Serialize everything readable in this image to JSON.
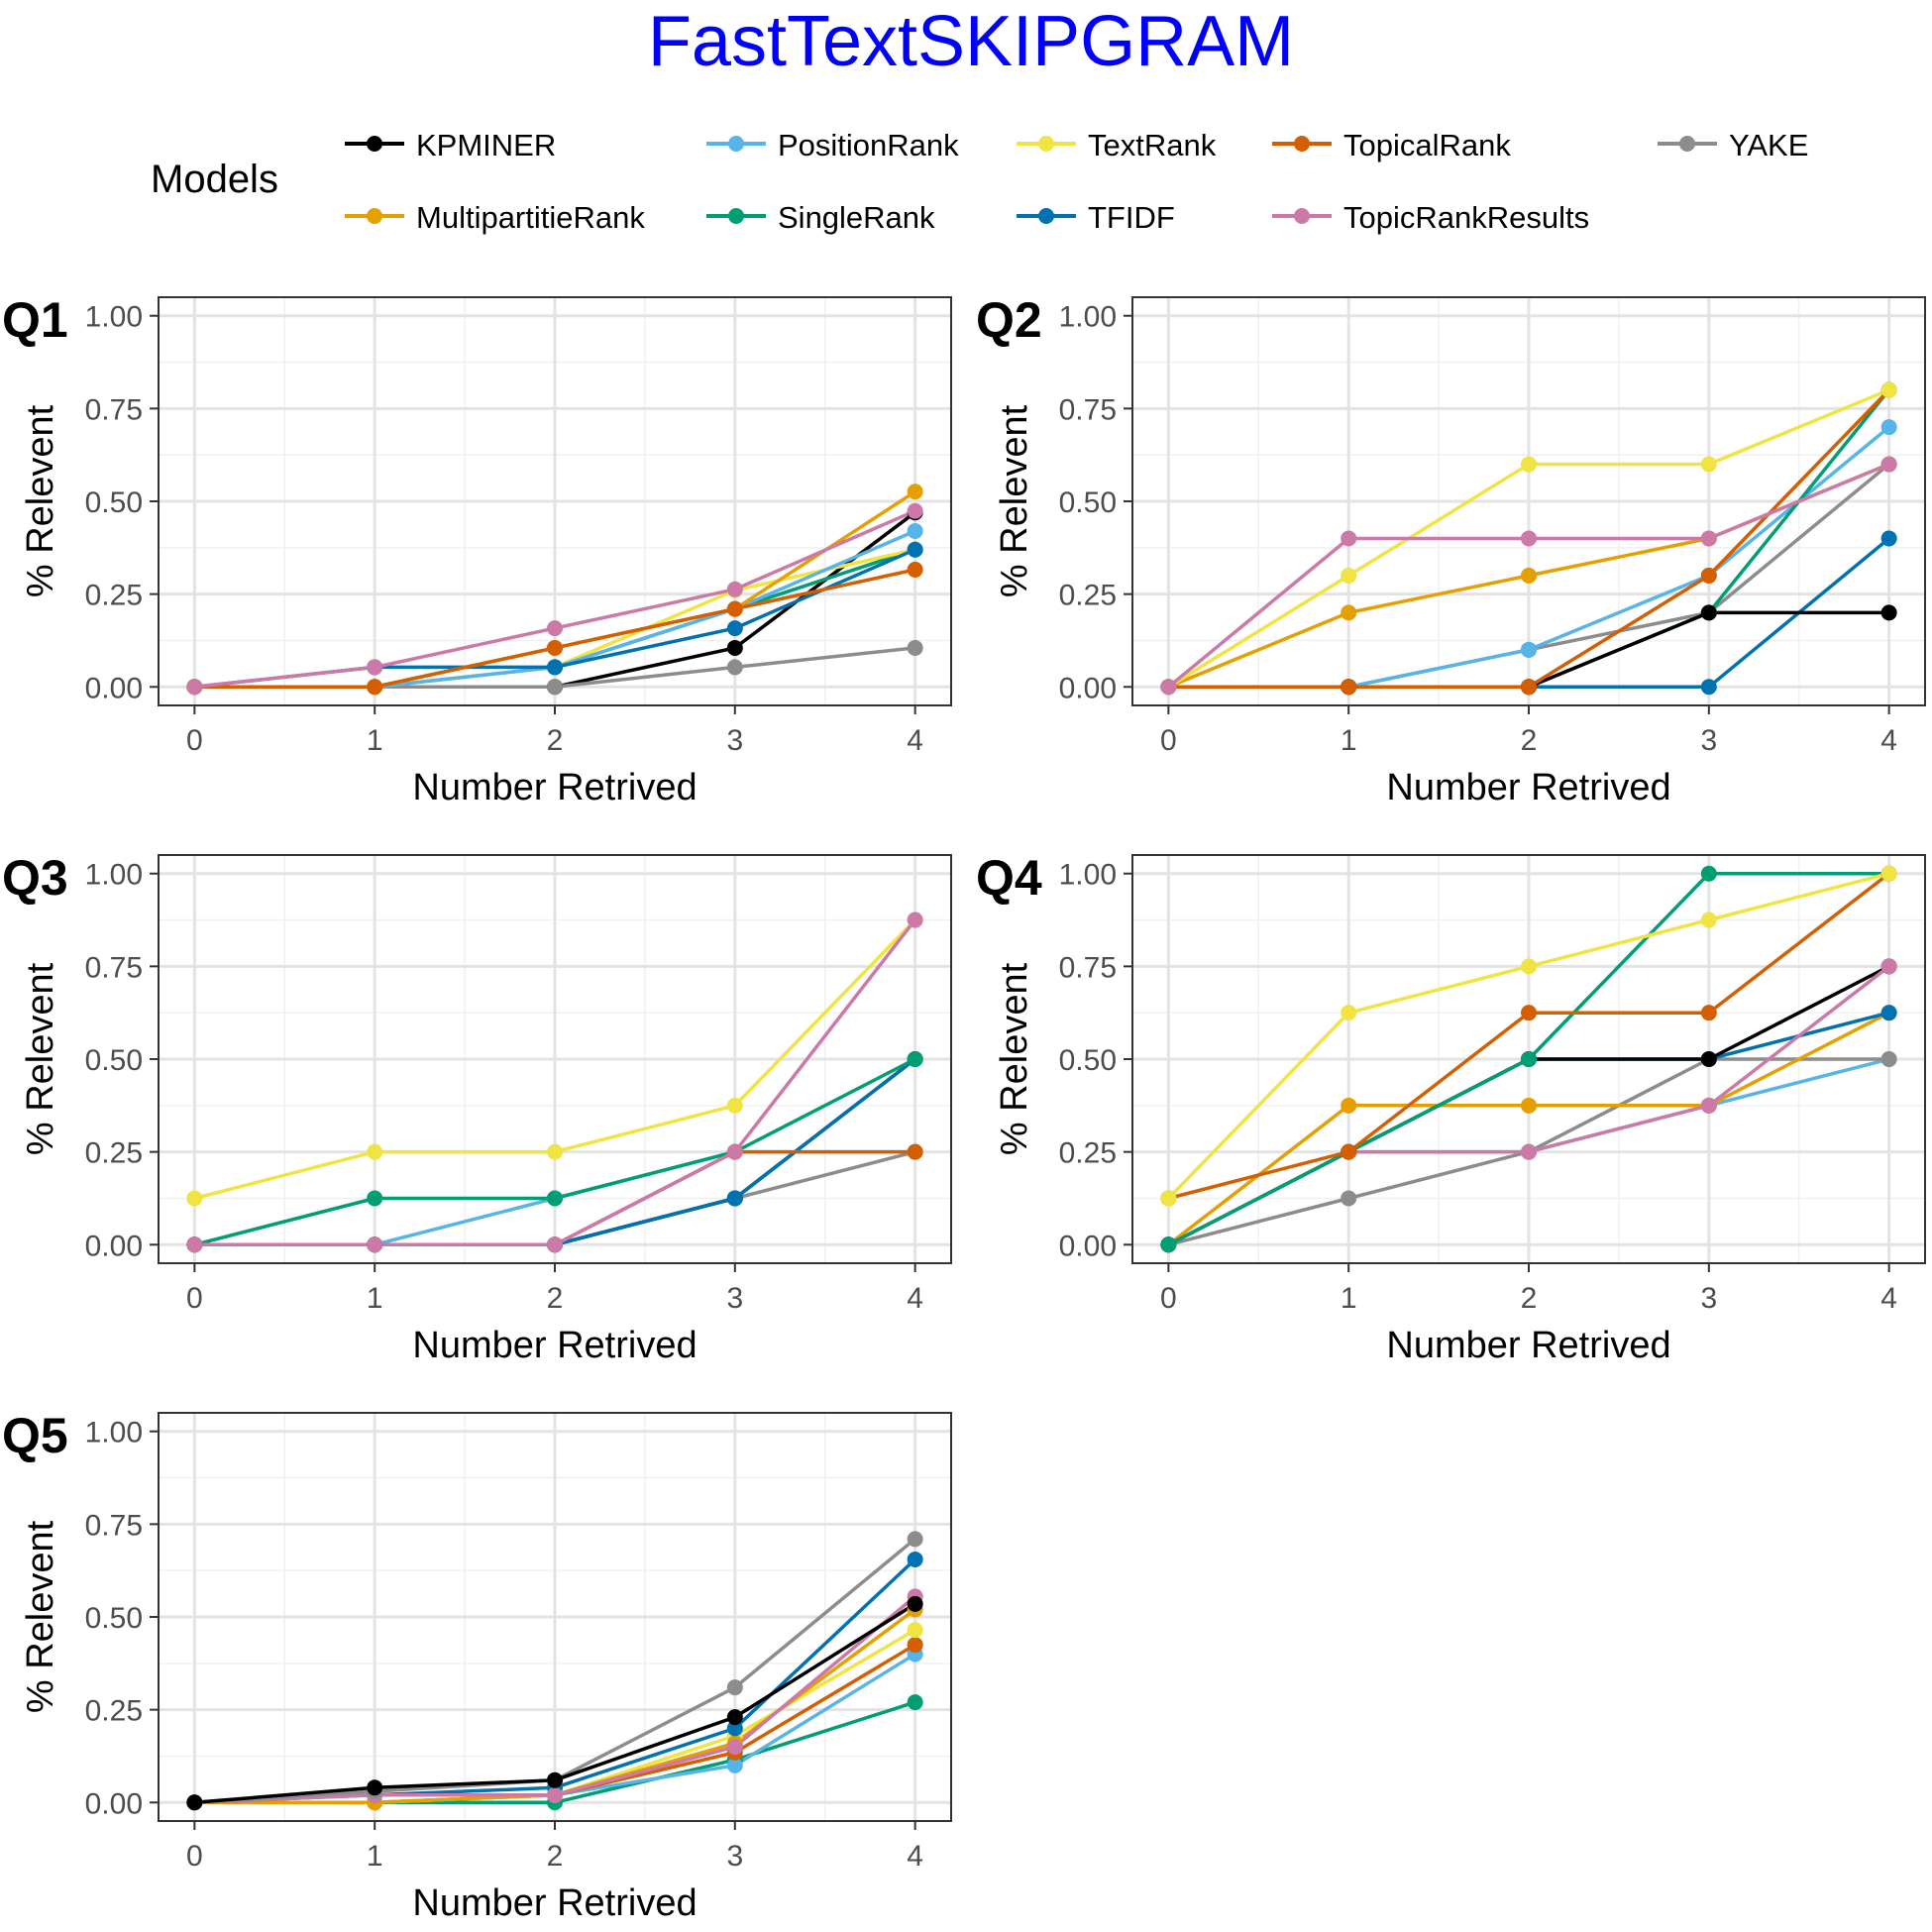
{
  "title": "FastTextSKIPGRAM",
  "title_color": "#0000ff",
  "legend": {
    "title": "Models",
    "items": [
      {
        "name": "KPMINER",
        "color": "#000000"
      },
      {
        "name": "PositionRank",
        "color": "#56b4e9"
      },
      {
        "name": "TextRank",
        "color": "#f0e442"
      },
      {
        "name": "TopicalRank",
        "color": "#d55e00"
      },
      {
        "name": "YAKE",
        "color": "#8c8c8c"
      },
      {
        "name": "MultipartitieRank",
        "color": "#e69f00"
      },
      {
        "name": "SingleRank",
        "color": "#009e73"
      },
      {
        "name": "TFIDF",
        "color": "#0072b2"
      },
      {
        "name": "TopicRankResults",
        "color": "#cc79a7"
      }
    ]
  },
  "chart_data": [
    {
      "type": "line",
      "panel_label": "Q1",
      "xlabel": "Number Retrived",
      "ylabel": "% Relevent",
      "x": [
        0,
        1,
        2,
        3,
        4
      ],
      "x_ticks": [
        "0",
        "1",
        "2",
        "3",
        "4"
      ],
      "y_ticks": [
        "0.00",
        "0.25",
        "0.50",
        "0.75",
        "1.00"
      ],
      "xlim": [
        -0.2,
        4.2
      ],
      "ylim": [
        -0.05,
        1.05
      ],
      "grid": true,
      "series": [
        {
          "name": "KPMINER",
          "color": "#000000",
          "values": [
            0,
            0,
            0,
            0.105,
            0.47
          ]
        },
        {
          "name": "YAKE",
          "color": "#8c8c8c",
          "values": [
            0,
            0,
            0,
            0.053,
            0.105
          ]
        },
        {
          "name": "SingleRank",
          "color": "#009e73",
          "values": [
            0,
            0,
            0.053,
            0.21,
            0.37
          ]
        },
        {
          "name": "TextRank",
          "color": "#f0e442",
          "values": [
            0,
            0,
            0.053,
            0.26,
            0.37
          ]
        },
        {
          "name": "PositionRank",
          "color": "#56b4e9",
          "values": [
            0,
            0,
            0.053,
            0.21,
            0.42
          ]
        },
        {
          "name": "TFIDF",
          "color": "#0072b2",
          "values": [
            0,
            0.053,
            0.053,
            0.158,
            0.37
          ]
        },
        {
          "name": "MultipartitieRank",
          "color": "#e69f00",
          "values": [
            0,
            0,
            0.105,
            0.21,
            0.526
          ]
        },
        {
          "name": "TopicalRank",
          "color": "#d55e00",
          "values": [
            0,
            0,
            0.105,
            0.21,
            0.316
          ]
        },
        {
          "name": "TopicRankResults",
          "color": "#cc79a7",
          "values": [
            0,
            0.053,
            0.158,
            0.263,
            0.474
          ]
        }
      ]
    },
    {
      "type": "line",
      "panel_label": "Q2",
      "xlabel": "Number Retrived",
      "ylabel": "% Relevent",
      "x": [
        0,
        1,
        2,
        3,
        4
      ],
      "x_ticks": [
        "0",
        "1",
        "2",
        "3",
        "4"
      ],
      "y_ticks": [
        "0.00",
        "0.25",
        "0.50",
        "0.75",
        "1.00"
      ],
      "xlim": [
        -0.2,
        4.2
      ],
      "ylim": [
        -0.05,
        1.05
      ],
      "grid": true,
      "series": [
        {
          "name": "YAKE",
          "color": "#8c8c8c",
          "values": [
            0,
            0,
            0.1,
            0.2,
            0.6
          ]
        },
        {
          "name": "PositionRank",
          "color": "#56b4e9",
          "values": [
            0,
            0,
            0.1,
            0.3,
            0.7
          ]
        },
        {
          "name": "SingleRank",
          "color": "#009e73",
          "values": [
            0,
            0,
            0,
            0.2,
            0.8
          ]
        },
        {
          "name": "TFIDF",
          "color": "#0072b2",
          "values": [
            0,
            0,
            0,
            0,
            0.4
          ]
        },
        {
          "name": "KPMINER",
          "color": "#000000",
          "values": [
            0,
            0,
            0,
            0.2,
            0.2
          ]
        },
        {
          "name": "TopicalRank",
          "color": "#d55e00",
          "values": [
            0,
            0,
            0,
            0.3,
            0.8
          ]
        },
        {
          "name": "MultipartitieRank",
          "color": "#e69f00",
          "values": [
            0,
            0.2,
            0.3,
            0.4,
            0.6
          ]
        },
        {
          "name": "TextRank",
          "color": "#f0e442",
          "values": [
            0,
            0.3,
            0.6,
            0.6,
            0.8
          ]
        },
        {
          "name": "TopicRankResults",
          "color": "#cc79a7",
          "values": [
            0,
            0.4,
            0.4,
            0.4,
            0.6
          ]
        }
      ]
    },
    {
      "type": "line",
      "panel_label": "Q3",
      "xlabel": "Number Retrived",
      "ylabel": "% Relevent",
      "x": [
        0,
        1,
        2,
        3,
        4
      ],
      "x_ticks": [
        "0",
        "1",
        "2",
        "3",
        "4"
      ],
      "y_ticks": [
        "0.00",
        "0.25",
        "0.50",
        "0.75",
        "1.00"
      ],
      "xlim": [
        -0.2,
        4.2
      ],
      "ylim": [
        -0.05,
        1.05
      ],
      "grid": true,
      "series": [
        {
          "name": "PositionRank",
          "color": "#56b4e9",
          "values": [
            0,
            0,
            0.125,
            0.25,
            0.25
          ]
        },
        {
          "name": "YAKE",
          "color": "#8c8c8c",
          "values": [
            0,
            0,
            0,
            0.125,
            0.25
          ]
        },
        {
          "name": "KPMINER",
          "color": "#000000",
          "values": [
            0,
            0,
            0,
            0.125,
            0.5
          ]
        },
        {
          "name": "TFIDF",
          "color": "#0072b2",
          "values": [
            0,
            0,
            0,
            0.125,
            0.5
          ]
        },
        {
          "name": "SingleRank",
          "color": "#009e73",
          "values": [
            0,
            0.125,
            0.125,
            0.25,
            0.5
          ]
        },
        {
          "name": "TopicalRank",
          "color": "#d55e00",
          "values": [
            0,
            0,
            0,
            0.25,
            0.25
          ]
        },
        {
          "name": "TextRank",
          "color": "#f0e442",
          "values": [
            0.125,
            0.25,
            0.25,
            0.375,
            0.875
          ]
        },
        {
          "name": "TopicRankResults",
          "color": "#cc79a7",
          "values": [
            0,
            0,
            0,
            0.25,
            0.875
          ]
        }
      ]
    },
    {
      "type": "line",
      "panel_label": "Q4",
      "xlabel": "Number Retrived",
      "ylabel": "% Relevent",
      "x": [
        0,
        1,
        2,
        3,
        4
      ],
      "x_ticks": [
        "0",
        "1",
        "2",
        "3",
        "4"
      ],
      "y_ticks": [
        "0.00",
        "0.25",
        "0.50",
        "0.75",
        "1.00"
      ],
      "xlim": [
        -0.2,
        4.2
      ],
      "ylim": [
        -0.05,
        1.05
      ],
      "grid": true,
      "series": [
        {
          "name": "PositionRank",
          "color": "#56b4e9",
          "values": [
            0,
            0.25,
            0.25,
            0.375,
            0.5
          ]
        },
        {
          "name": "YAKE",
          "color": "#8c8c8c",
          "values": [
            0,
            0.125,
            0.25,
            0.5,
            0.5
          ]
        },
        {
          "name": "MultipartitieRank",
          "color": "#e69f00",
          "values": [
            0,
            0.375,
            0.375,
            0.375,
            0.625
          ]
        },
        {
          "name": "TFIDF",
          "color": "#0072b2",
          "values": [
            0,
            0.25,
            0.5,
            0.5,
            0.625
          ]
        },
        {
          "name": "KPMINER",
          "color": "#000000",
          "values": [
            0,
            0.25,
            0.5,
            0.5,
            0.75
          ]
        },
        {
          "name": "TopicRankResults",
          "color": "#cc79a7",
          "values": [
            0,
            0.25,
            0.25,
            0.375,
            0.75
          ]
        },
        {
          "name": "SingleRank",
          "color": "#009e73",
          "values": [
            0,
            0.25,
            0.5,
            1.0,
            1.0
          ]
        },
        {
          "name": "TopicalRank",
          "color": "#d55e00",
          "values": [
            0.125,
            0.25,
            0.625,
            0.625,
            1.0
          ]
        },
        {
          "name": "TextRank",
          "color": "#f0e442",
          "values": [
            0.125,
            0.625,
            0.75,
            0.875,
            1.0
          ]
        }
      ]
    },
    {
      "type": "line",
      "panel_label": "Q5",
      "xlabel": "Number Retrived",
      "ylabel": "% Relevent",
      "x": [
        0,
        1,
        2,
        3,
        4
      ],
      "x_ticks": [
        "0",
        "1",
        "2",
        "3",
        "4"
      ],
      "y_ticks": [
        "0.00",
        "0.25",
        "0.50",
        "0.75",
        "1.00"
      ],
      "xlim": [
        -0.2,
        4.2
      ],
      "ylim": [
        -0.05,
        1.05
      ],
      "grid": true,
      "series": [
        {
          "name": "SingleRank",
          "color": "#009e73",
          "values": [
            0,
            0,
            0,
            0.115,
            0.27
          ]
        },
        {
          "name": "PositionRank",
          "color": "#56b4e9",
          "values": [
            0,
            0,
            0.02,
            0.1,
            0.4
          ]
        },
        {
          "name": "TopicalRank",
          "color": "#d55e00",
          "values": [
            0,
            0,
            0.02,
            0.135,
            0.425
          ]
        },
        {
          "name": "TextRank",
          "color": "#f0e442",
          "values": [
            0,
            0,
            0.02,
            0.18,
            0.465
          ]
        },
        {
          "name": "MultipartitieRank",
          "color": "#e69f00",
          "values": [
            0,
            0,
            0.02,
            0.16,
            0.52
          ]
        },
        {
          "name": "TFIDF",
          "color": "#0072b2",
          "values": [
            0,
            0.02,
            0.04,
            0.2,
            0.655
          ]
        },
        {
          "name": "TopicRankResults",
          "color": "#cc79a7",
          "values": [
            0,
            0.02,
            0.02,
            0.15,
            0.555
          ]
        },
        {
          "name": "YAKE",
          "color": "#8c8c8c",
          "values": [
            0,
            0.03,
            0.06,
            0.31,
            0.71
          ]
        },
        {
          "name": "KPMINER",
          "color": "#000000",
          "values": [
            0,
            0.04,
            0.06,
            0.23,
            0.535
          ]
        }
      ]
    }
  ]
}
